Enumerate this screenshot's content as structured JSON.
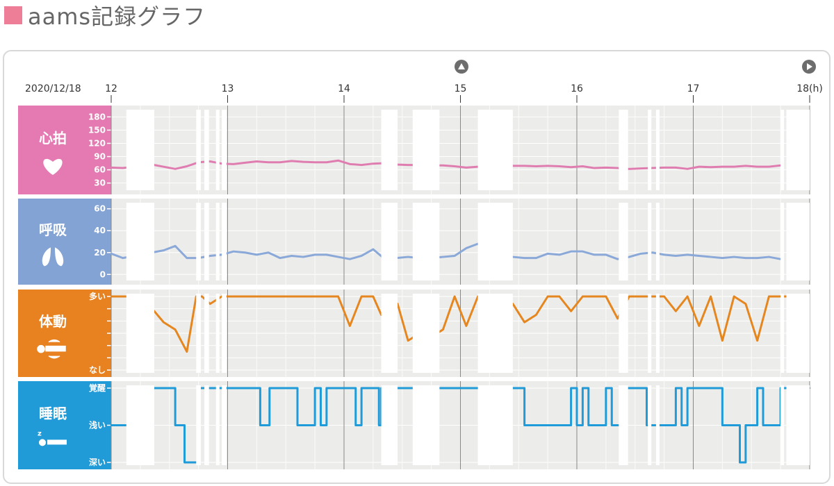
{
  "page": {
    "title": "aams記録グラフ",
    "title_color": "#ee7e98"
  },
  "nav": {
    "up_icon": "triangle-up-circle-icon",
    "next_icon": "triangle-right-circle-icon",
    "icon_color": "#6d6d6d"
  },
  "colors": {
    "chart_bg": "#ececea",
    "grid": "#ffffff",
    "gap": "#ffffff",
    "hour_line": "#888888"
  },
  "chart_data": {
    "type": "line",
    "date": "2020/12/18",
    "x_ticks": [
      "12",
      "13",
      "14",
      "15",
      "16",
      "17",
      "18(h)"
    ],
    "x_range": [
      12,
      18
    ],
    "gaps": [
      [
        12.13,
        12.37
      ],
      [
        12.73,
        12.77
      ],
      [
        12.8,
        12.84
      ],
      [
        12.9,
        12.93
      ],
      [
        12.95,
        12.99
      ],
      [
        14.32,
        14.46
      ],
      [
        14.59,
        14.82
      ],
      [
        15.15,
        15.45
      ],
      [
        16.36,
        16.44
      ],
      [
        16.61,
        16.64
      ],
      [
        16.68,
        16.71
      ],
      [
        17.75,
        17.78
      ],
      [
        17.8,
        18.0
      ]
    ],
    "panels": [
      {
        "key": "heart",
        "label": "心拍",
        "icon": "heart-icon",
        "color": "#e57ab2",
        "line_color": "#e07db0",
        "y_ticks": [
          "180",
          "150",
          "120",
          "90",
          "60",
          "30"
        ],
        "ylim": [
          20,
          190
        ],
        "x": [
          12.0,
          12.1,
          12.35,
          12.55,
          12.65,
          12.75,
          12.85,
          12.95,
          13.05,
          13.15,
          13.25,
          13.35,
          13.45,
          13.55,
          13.65,
          13.75,
          13.85,
          13.95,
          14.05,
          14.15,
          14.25,
          14.35,
          14.45,
          14.55,
          14.65,
          14.75,
          14.85,
          14.95,
          15.05,
          15.15,
          15.25,
          15.35,
          15.45,
          15.55,
          15.65,
          15.75,
          15.85,
          15.95,
          16.05,
          16.15,
          16.25,
          16.35,
          16.45,
          16.55,
          16.65,
          16.75,
          16.85,
          16.95,
          17.05,
          17.15,
          17.25,
          17.35,
          17.45,
          17.55,
          17.65,
          17.75
        ],
        "values": [
          65,
          64,
          72,
          62,
          68,
          77,
          79,
          74,
          73,
          76,
          79,
          77,
          77,
          80,
          78,
          77,
          77,
          81,
          73,
          71,
          74,
          75,
          72,
          71,
          71,
          70,
          70,
          68,
          65,
          67,
          69,
          70,
          69,
          69,
          68,
          69,
          68,
          66,
          68,
          64,
          65,
          64,
          62,
          63,
          64,
          65,
          65,
          62,
          67,
          66,
          67,
          67,
          69,
          67,
          67,
          70
        ]
      },
      {
        "key": "breath",
        "label": "呼吸",
        "icon": "lungs-icon",
        "color": "#84a3d5",
        "line_color": "#8aa8d8",
        "y_ticks": [
          "60",
          "40",
          "20",
          "0"
        ],
        "ylim": [
          -3,
          63
        ],
        "x": [
          12.0,
          12.1,
          12.35,
          12.45,
          12.55,
          12.65,
          12.75,
          12.85,
          12.95,
          13.05,
          13.15,
          13.25,
          13.35,
          13.45,
          13.55,
          13.65,
          13.75,
          13.85,
          13.95,
          14.05,
          14.15,
          14.25,
          14.35,
          14.45,
          14.55,
          14.65,
          14.75,
          14.85,
          14.95,
          15.05,
          15.15,
          15.25,
          15.35,
          15.45,
          15.55,
          15.65,
          15.75,
          15.85,
          15.95,
          16.05,
          16.15,
          16.25,
          16.35,
          16.45,
          16.55,
          16.65,
          16.75,
          16.85,
          16.95,
          17.05,
          17.15,
          17.25,
          17.35,
          17.45,
          17.55,
          17.65,
          17.75
        ],
        "values": [
          19,
          15,
          20,
          22,
          26,
          15,
          15,
          17,
          18,
          21,
          20,
          18,
          20,
          15,
          17,
          16,
          18,
          18,
          16,
          14,
          17,
          23,
          14,
          15,
          16,
          15,
          15,
          16,
          17,
          24,
          28,
          17,
          16,
          16,
          15,
          15,
          19,
          18,
          21,
          21,
          18,
          18,
          14,
          16,
          19,
          20,
          18,
          17,
          18,
          17,
          16,
          15,
          16,
          15,
          15,
          16,
          14
        ]
      },
      {
        "key": "motion",
        "label": "体動",
        "icon": "person-motion-icon",
        "color": "#e8811f",
        "line_color": "#e5861f",
        "y_ticks": [
          "多い",
          "",
          "",
          "",
          "",
          "",
          "なし"
        ],
        "ylim": [
          0,
          100
        ],
        "x": [
          12.0,
          12.2,
          12.37,
          12.45,
          12.55,
          12.65,
          12.73,
          12.78,
          12.85,
          12.95,
          13.05,
          13.15,
          13.25,
          13.35,
          13.45,
          13.55,
          13.65,
          13.75,
          13.85,
          13.95,
          14.05,
          14.15,
          14.25,
          14.32,
          14.46,
          14.55,
          14.65,
          14.75,
          14.85,
          14.95,
          15.05,
          15.15,
          15.45,
          15.55,
          15.65,
          15.75,
          15.85,
          15.95,
          16.05,
          16.15,
          16.25,
          16.35,
          16.45,
          16.55,
          16.65,
          16.75,
          16.85,
          16.95,
          17.05,
          17.15,
          17.25,
          17.35,
          17.45,
          17.55,
          17.65,
          17.75,
          17.85
        ],
        "values": [
          100,
          100,
          80,
          65,
          55,
          25,
          100,
          100,
          90,
          100,
          100,
          100,
          100,
          100,
          100,
          100,
          100,
          100,
          100,
          100,
          60,
          100,
          100,
          75,
          90,
          40,
          50,
          45,
          55,
          100,
          60,
          100,
          90,
          65,
          75,
          100,
          100,
          80,
          100,
          100,
          100,
          70,
          100,
          100,
          100,
          100,
          80,
          100,
          60,
          100,
          40,
          100,
          90,
          40,
          100,
          100,
          100
        ]
      },
      {
        "key": "sleep",
        "label": "睡眠",
        "icon": "sleeping-person-icon",
        "color": "#209bd8",
        "line_color": "#1e9bd8",
        "y_ticks": [
          "覚醒",
          "浅い",
          "深い"
        ],
        "ylim": [
          0,
          2
        ],
        "x": [
          12.0,
          12.05,
          12.15,
          12.45,
          12.55,
          12.6,
          12.63,
          12.7,
          12.75,
          12.8,
          13.0,
          13.2,
          13.28,
          13.36,
          13.45,
          13.6,
          13.65,
          13.75,
          13.8,
          13.85,
          14.0,
          14.1,
          14.15,
          14.25,
          14.3,
          14.32,
          14.5,
          14.95,
          15.0,
          15.05,
          15.15,
          15.4,
          15.45,
          15.55,
          15.6,
          15.95,
          16.0,
          16.05,
          16.1,
          16.25,
          16.3,
          16.4,
          16.45,
          16.6,
          16.75,
          16.85,
          16.9,
          16.95,
          17.0,
          17.15,
          17.25,
          17.35,
          17.4,
          17.45,
          17.55,
          17.6,
          17.75,
          17.85,
          17.95,
          18.0
        ],
        "values": [
          1,
          1,
          2,
          2,
          1,
          1,
          0,
          0,
          2,
          2,
          2,
          2,
          1,
          2,
          2,
          1,
          1,
          2,
          1,
          2,
          2,
          1,
          2,
          2,
          1,
          2,
          2,
          2,
          2,
          2,
          2,
          2,
          2,
          1,
          1,
          2,
          1,
          2,
          1,
          2,
          1,
          2,
          2,
          1,
          1,
          2,
          1,
          2,
          2,
          2,
          1,
          1,
          0,
          1,
          2,
          1,
          2,
          2,
          2,
          2
        ]
      }
    ]
  }
}
